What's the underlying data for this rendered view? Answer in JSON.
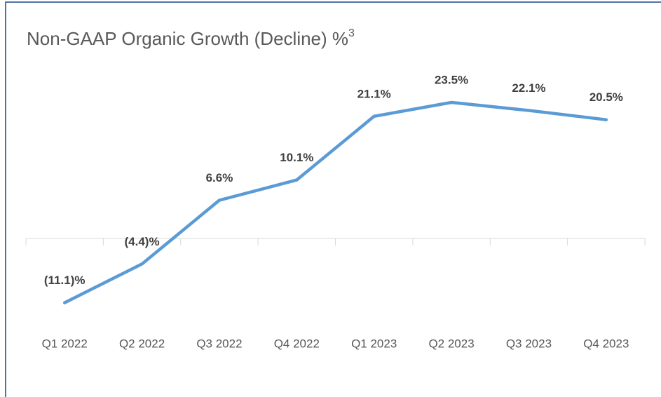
{
  "chart_data": {
    "type": "line",
    "title": "Non-GAAP Organic Growth (Decline) %",
    "title_superscript": "3",
    "categories": [
      "Q1 2022",
      "Q2 2022",
      "Q3 2022",
      "Q4 2022",
      "Q1 2023",
      "Q2 2023",
      "Q3 2023",
      "Q4 2023"
    ],
    "series": [
      {
        "name": "Non-GAAP Organic Growth (Decline) %",
        "color": "#5b9bd5",
        "values": [
          -11.1,
          -4.4,
          6.6,
          10.1,
          21.1,
          23.5,
          22.1,
          20.5
        ],
        "value_labels": [
          "(11.1)%",
          "(4.4)%",
          "6.6%",
          "10.1%",
          "21.1%",
          "23.5%",
          "22.1%",
          "20.5%"
        ]
      }
    ],
    "ylim": [
      -15,
      30
    ],
    "legend": false,
    "grid": false
  }
}
